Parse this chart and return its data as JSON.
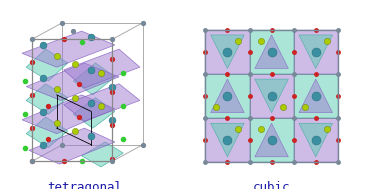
{
  "background_color": "#ffffff",
  "fig_width": 3.67,
  "fig_height": 1.89,
  "left_label": "tetragonal",
  "right_label": "cubic",
  "label_fontsize": 9,
  "label_color": "#1a1aaa",
  "label_font": "monospace",
  "purple_face": [
    0.62,
    0.48,
    0.82,
    0.5
  ],
  "teal_face": [
    0.35,
    0.8,
    0.7,
    0.5
  ],
  "purple_edge": [
    0.5,
    0.35,
    0.75,
    0.8
  ],
  "teal_edge": [
    0.2,
    0.65,
    0.6,
    0.8
  ],
  "ho_color": "#3b8fa0",
  "ho_highlight": "#6bbccc",
  "ge_color": "#aacc00",
  "ge_highlight": "#ccee44",
  "o_color": "#cc2222",
  "green_color": "#33cc33",
  "gray_color": "#778899",
  "box_color": "#888888"
}
